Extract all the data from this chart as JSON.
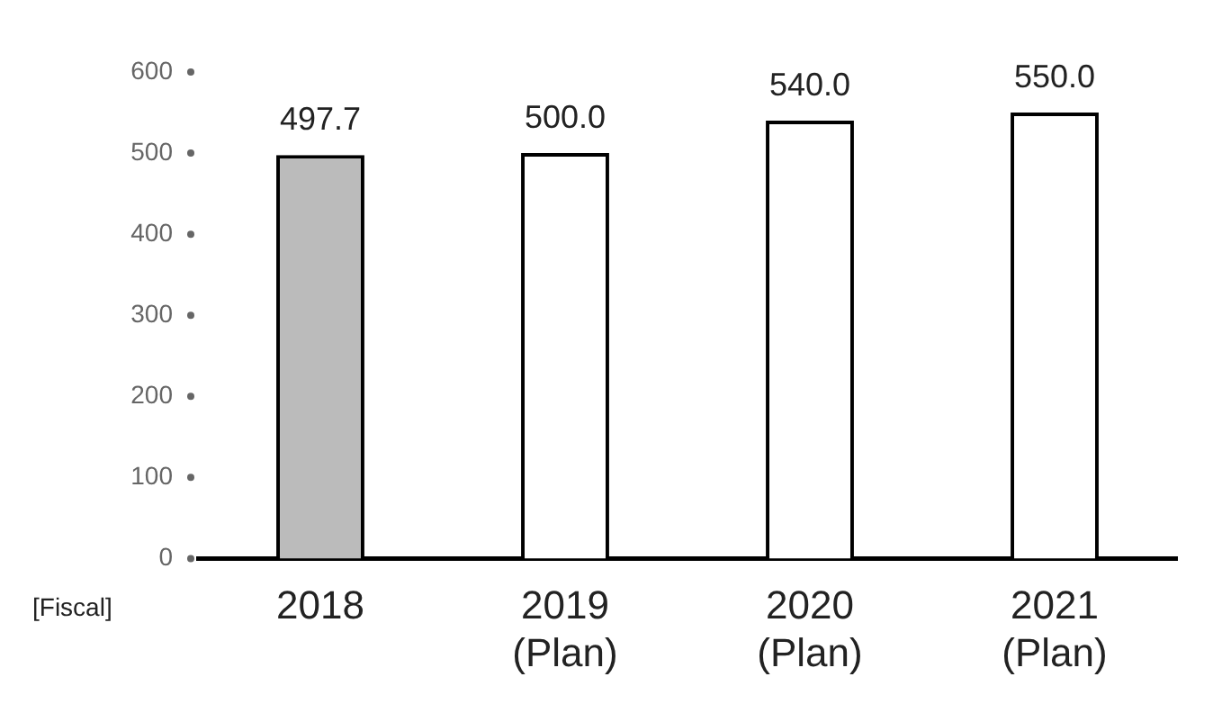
{
  "chart_data": {
    "type": "bar",
    "categories": [
      "2018",
      "2019\n(Plan)",
      "2020\n(Plan)",
      "2021\n(Plan)"
    ],
    "values": [
      497.7,
      500.0,
      540.0,
      550.0
    ],
    "value_labels": [
      "497.7",
      "500.0",
      "540.0",
      "550.0"
    ],
    "colors": [
      "#bbbbbb",
      "#ffffff",
      "#ffffff",
      "#ffffff"
    ],
    "ylim": [
      0,
      600
    ],
    "yticks": [
      0,
      100,
      200,
      300,
      400,
      500,
      600
    ],
    "grid": false,
    "legend": false,
    "annotations": [
      "[Fiscal]"
    ]
  }
}
